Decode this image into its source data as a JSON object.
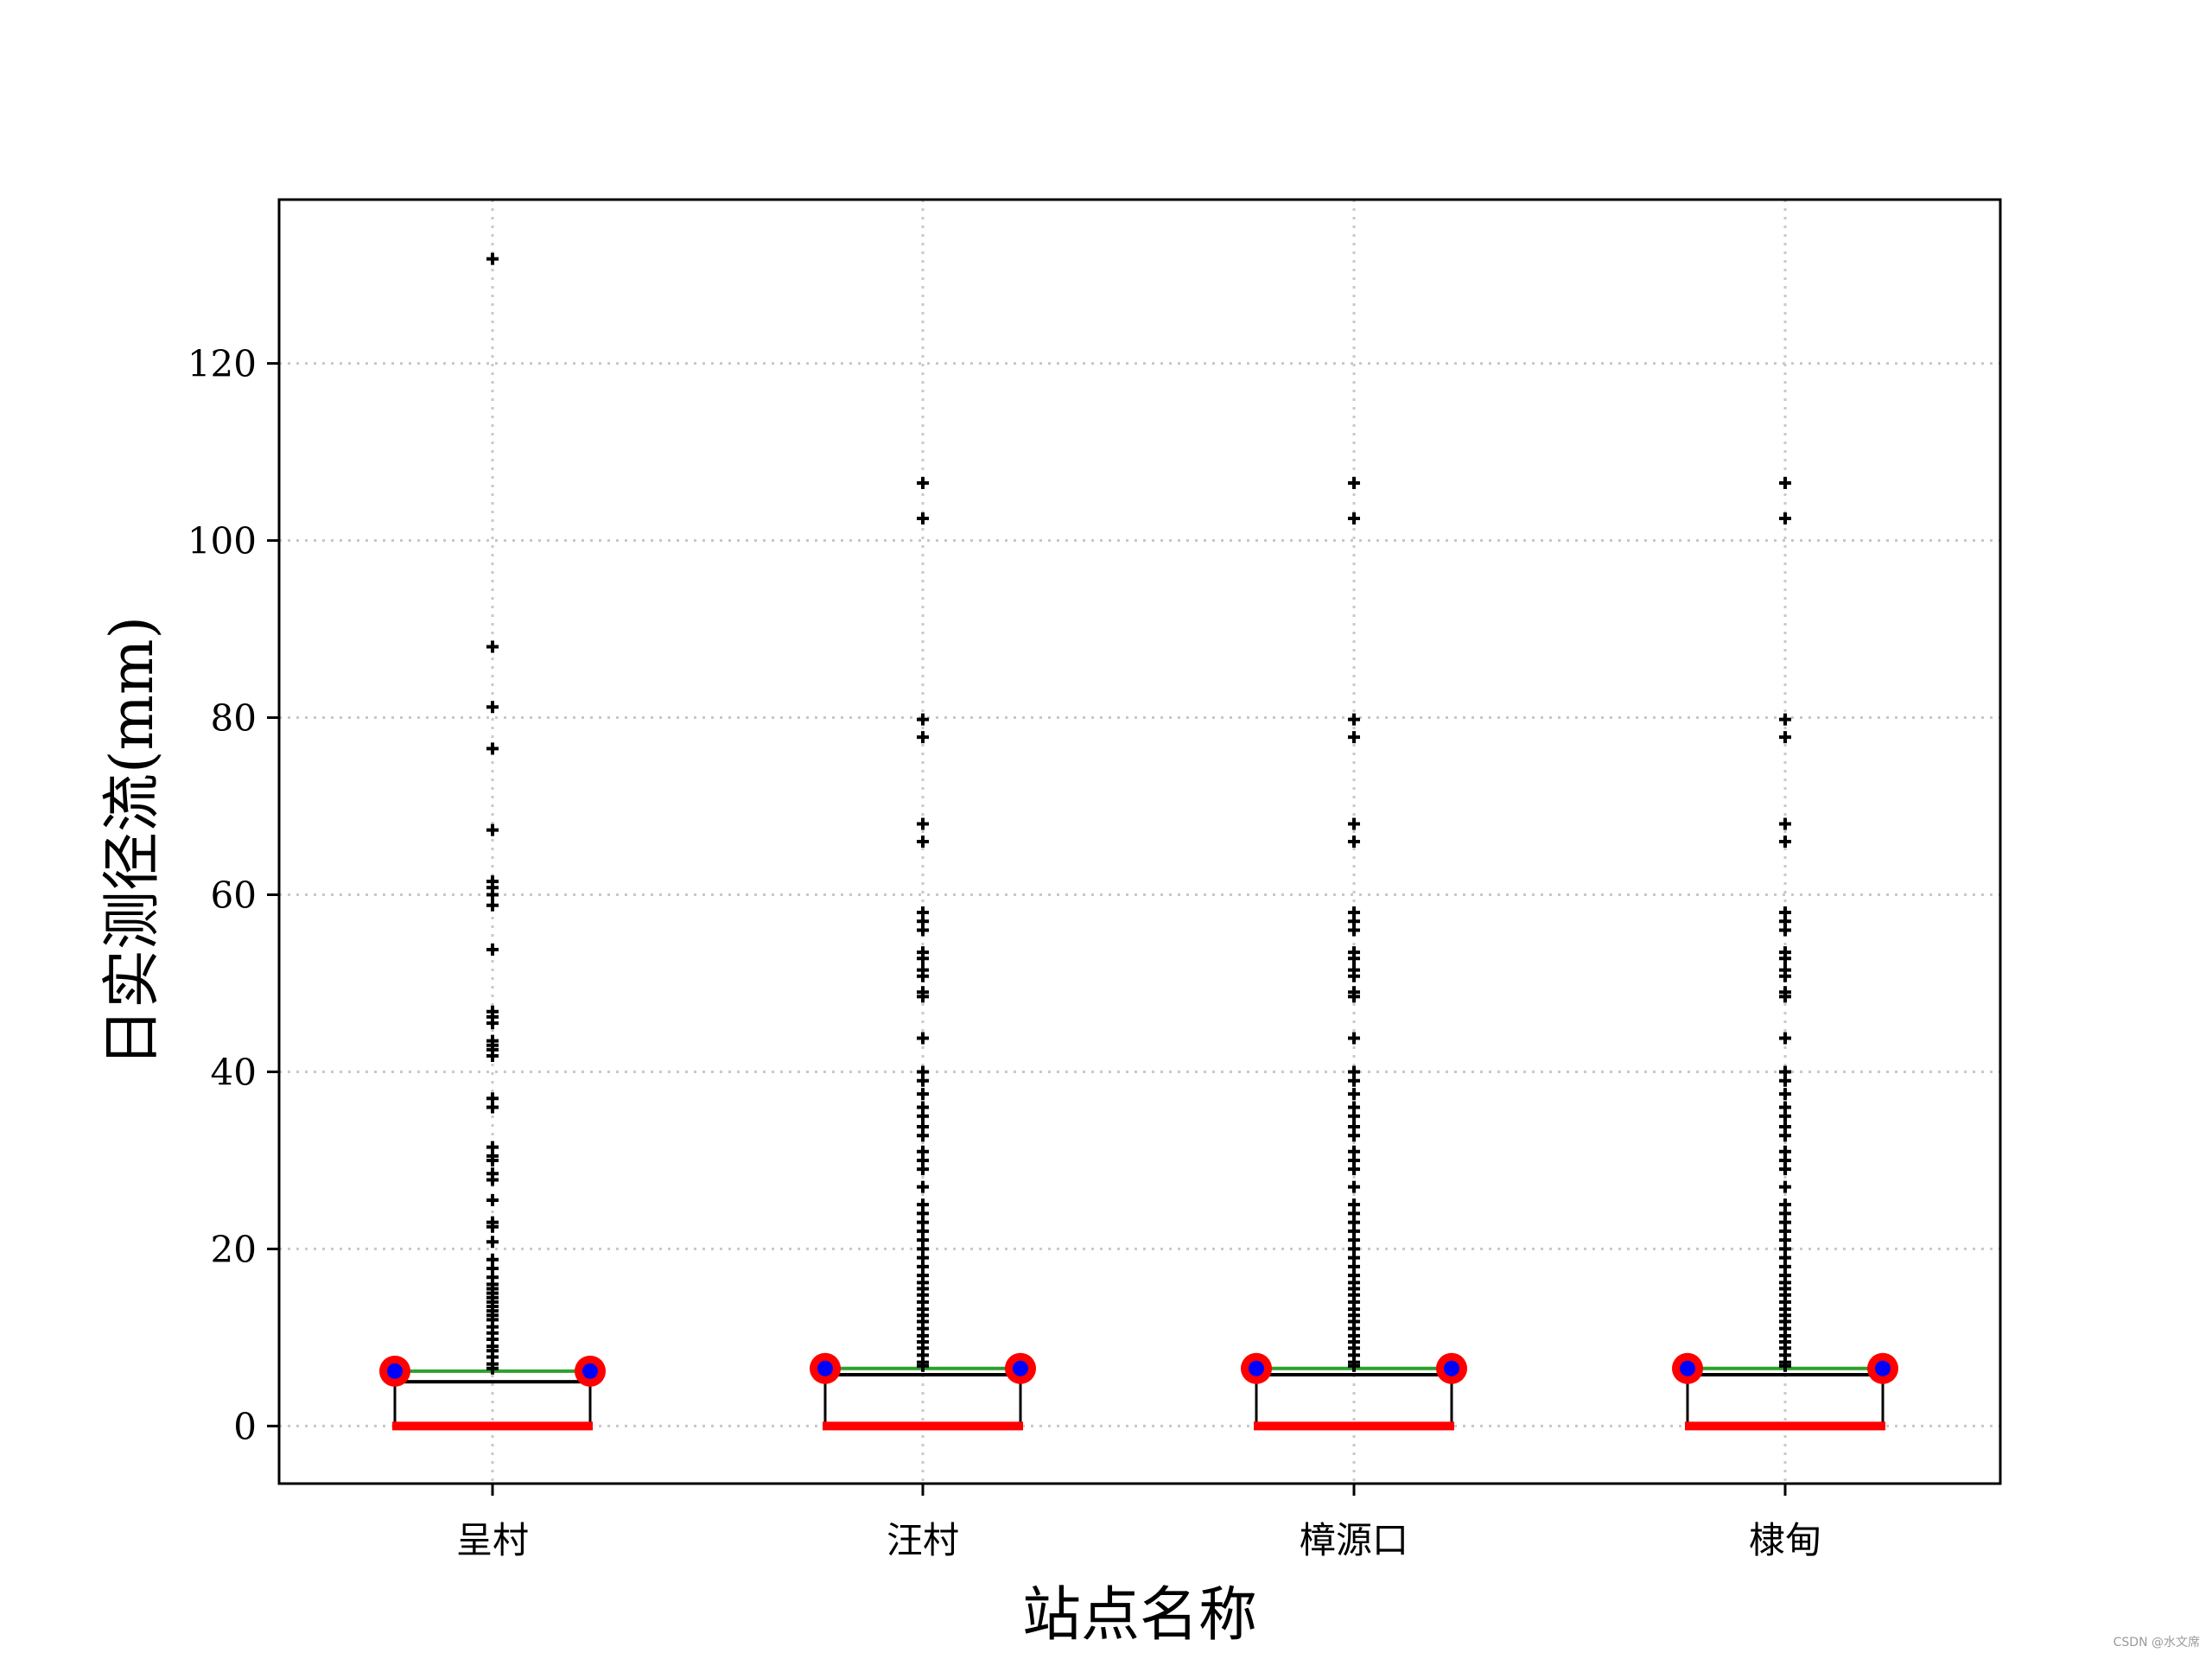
{
  "chart_data": {
    "type": "box",
    "title": "",
    "xlabel": "站点名称",
    "ylabel": "日实测径流(mm)",
    "ylim": [
      -6.5,
      138.5
    ],
    "yticks": [
      0,
      20,
      40,
      60,
      80,
      100,
      120
    ],
    "grid": true,
    "categories": [
      "呈村",
      "汪村",
      "樟源口",
      "棣甸"
    ],
    "series": [
      {
        "category": "呈村",
        "whisker_low": 0,
        "q1": 0,
        "median": 5.0,
        "q3": 6.2,
        "whisker_high": 6.2,
        "outliers": [
          131.8,
          88.0,
          81.2,
          76.5,
          67.3,
          61.5,
          60.8,
          60.0,
          58.8,
          53.8,
          46.8,
          46.2,
          45.5,
          43.5,
          43.0,
          42.5,
          41.8,
          37.0,
          36.0,
          31.5,
          30.5,
          30.0,
          28.5,
          27.8,
          25.5,
          23.0,
          22.5,
          20.8,
          18.8,
          17.8,
          16.8,
          16.0,
          15.5,
          15.0,
          14.5,
          14.0,
          13.5,
          13.0,
          12.5,
          12.0,
          11.2,
          10.5,
          9.8,
          9.0,
          8.5,
          7.8,
          7.0,
          6.5
        ]
      },
      {
        "category": "汪村",
        "whisker_low": 0,
        "q1": 0,
        "median": 5.8,
        "q3": 6.5,
        "whisker_high": 6.5,
        "outliers": [
          106.5,
          102.5,
          79.8,
          77.8,
          68.0,
          66.0,
          58.0,
          57.0,
          56.0,
          53.5,
          52.8,
          51.5,
          50.8,
          49.0,
          48.5,
          43.8,
          40.0,
          39.0,
          37.5,
          36.0,
          35.0,
          33.8,
          32.8,
          31.0,
          30.0,
          29.0,
          27.0,
          25.0,
          24.0,
          23.0,
          22.0,
          21.0,
          20.0,
          19.0,
          18.0,
          17.0,
          16.2,
          15.5,
          14.8,
          14.0,
          13.2,
          12.5,
          11.8,
          11.0,
          10.2,
          9.5,
          8.8,
          8.0,
          7.2,
          6.8
        ]
      },
      {
        "category": "樟源口",
        "whisker_low": 0,
        "q1": 0,
        "median": 5.8,
        "q3": 6.5,
        "whisker_high": 6.5,
        "outliers": [
          106.5,
          102.5,
          79.8,
          77.8,
          68.0,
          66.0,
          58.0,
          57.0,
          56.0,
          53.5,
          52.8,
          51.5,
          50.8,
          49.0,
          48.5,
          43.8,
          40.0,
          39.0,
          37.5,
          36.0,
          35.0,
          33.8,
          32.8,
          31.0,
          30.0,
          29.0,
          27.0,
          25.0,
          24.0,
          23.0,
          22.0,
          21.0,
          20.0,
          19.0,
          18.0,
          17.0,
          16.2,
          15.5,
          14.8,
          14.0,
          13.2,
          12.5,
          11.8,
          11.0,
          10.2,
          9.5,
          8.8,
          8.0,
          7.2,
          6.8
        ]
      },
      {
        "category": "棣甸",
        "whisker_low": 0,
        "q1": 0,
        "median": 5.8,
        "q3": 6.5,
        "whisker_high": 6.5,
        "outliers": [
          106.5,
          102.5,
          79.8,
          77.8,
          68.0,
          66.0,
          58.0,
          57.0,
          56.0,
          53.5,
          52.8,
          51.5,
          50.8,
          49.0,
          48.5,
          43.8,
          40.0,
          39.0,
          37.5,
          36.0,
          35.0,
          33.8,
          32.8,
          31.0,
          30.0,
          29.0,
          27.0,
          25.0,
          24.0,
          23.0,
          22.0,
          21.0,
          20.0,
          19.0,
          18.0,
          17.0,
          16.2,
          15.5,
          14.8,
          14.0,
          13.2,
          12.5,
          11.8,
          11.0,
          10.2,
          9.5,
          8.8,
          8.0,
          7.2,
          6.8
        ]
      }
    ],
    "colors": {
      "box": "#000000",
      "median": "#2ca02c",
      "cap": "#ff0000",
      "mean_marker_edge": "#ff0000",
      "mean_marker_fill": "#0000ff",
      "outlier": "#000000",
      "grid": "#c8c8c8"
    }
  },
  "credit": "CSDN @水文席"
}
